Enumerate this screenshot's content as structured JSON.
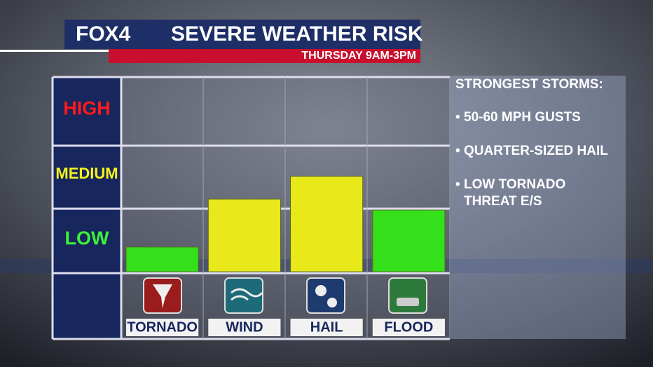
{
  "chart_data": {
    "type": "bar",
    "logo": "FOX4",
    "title": "SEVERE WEATHER RISK",
    "subtitle": "THURSDAY 9AM-3PM",
    "categories": [
      "TORNADO",
      "WIND",
      "HAIL",
      "FLOOD"
    ],
    "values": [
      0.38,
      1.12,
      1.47,
      0.95
    ],
    "colors": [
      "#33e01a",
      "#e8e81a",
      "#e8e81a",
      "#33e01a"
    ],
    "ylim": [
      0,
      3
    ],
    "yticks": [
      {
        "value": 0.5,
        "label": "LOW"
      },
      {
        "value": 1.5,
        "label": "MEDIUM"
      },
      {
        "value": 2.5,
        "label": "HIGH"
      }
    ],
    "ytick_colors": [
      "#3ef03a",
      "#f4f41e",
      "#ff1a1a"
    ],
    "notes": {
      "heading": "STRONGEST STORMS:",
      "items": [
        "50-60 MPH GUSTS",
        "QUARTER-SIZED HAIL",
        "LOW TORNADO THREAT E/S"
      ]
    }
  }
}
